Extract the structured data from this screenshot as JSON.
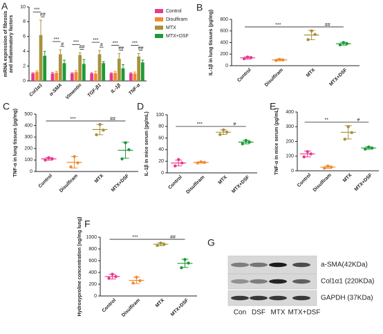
{
  "chart_data": [
    {
      "panel": "A",
      "type": "bar",
      "y_label": [
        "mRNA expression of fibrosis",
        "and inflammatory factors"
      ],
      "categories": [
        "Col1α1",
        "α-SMA",
        "Vimentin",
        "TGF-β1",
        "IL-1β",
        "TNF-α"
      ],
      "series": [
        {
          "name": "Control",
          "color": "#e8398e",
          "values": [
            1,
            1,
            1,
            1,
            1,
            1
          ],
          "errors": [
            0.1,
            0.15,
            0.1,
            0.1,
            0.1,
            0.1
          ]
        },
        {
          "name": "Disulfiram",
          "color": "#f28a2e",
          "values": [
            1.2,
            1.1,
            1.2,
            1.0,
            1.1,
            1.0
          ],
          "errors": [
            0.15,
            0.2,
            0.2,
            0.3,
            0.2,
            0.2
          ]
        },
        {
          "name": "MTX",
          "color": "#a8913c",
          "values": [
            6.2,
            3.6,
            3.5,
            3.6,
            3.0,
            3.3
          ],
          "errors": [
            2.0,
            0.6,
            0.3,
            0.5,
            0.7,
            0.4
          ]
        },
        {
          "name": "MTX+DSF",
          "color": "#1d9a36",
          "values": [
            3.4,
            2.4,
            2.3,
            2.4,
            1.7,
            2.5
          ],
          "errors": [
            0.6,
            0.4,
            0.6,
            0.2,
            0.5,
            0.3
          ]
        }
      ],
      "ylim": [
        0,
        10
      ],
      "yticks": [
        0,
        2,
        4,
        6,
        8,
        10
      ],
      "legend": "right",
      "comparisons": [
        {
          "category": 0,
          "series": [
            0,
            2
          ],
          "label": "***"
        },
        {
          "category": 0,
          "series": [
            2,
            3
          ],
          "label": "##"
        },
        {
          "category": 1,
          "series": [
            0,
            2
          ],
          "label": "***"
        },
        {
          "category": 1,
          "series": [
            2,
            3
          ],
          "label": "#"
        },
        {
          "category": 2,
          "series": [
            0,
            2
          ],
          "label": "***"
        },
        {
          "category": 2,
          "series": [
            2,
            3
          ],
          "label": "##"
        },
        {
          "category": 3,
          "series": [
            0,
            2
          ],
          "label": "***"
        },
        {
          "category": 3,
          "series": [
            2,
            3
          ],
          "label": "#"
        },
        {
          "category": 4,
          "series": [
            0,
            2
          ],
          "label": "***"
        },
        {
          "category": 4,
          "series": [
            2,
            3
          ],
          "label": "##"
        },
        {
          "category": 5,
          "series": [
            0,
            2
          ],
          "label": "***"
        },
        {
          "category": 5,
          "series": [
            2,
            3
          ],
          "label": "##"
        }
      ]
    },
    {
      "panel": "B",
      "type": "dotplot",
      "y_label": "IL-1β  in lung tissues  (pg/mg)",
      "categories": [
        "Control",
        "Disulfiram",
        "MTX",
        "MTX+DSF"
      ],
      "colors": [
        "#e8398e",
        "#f28a2e",
        "#a8913c",
        "#1d9a36"
      ],
      "points": [
        [
          120,
          150,
          140
        ],
        [
          90,
          110,
          100
        ],
        [
          450,
          600,
          540
        ],
        [
          360,
          400,
          380
        ]
      ],
      "means": [
        135,
        100,
        530,
        380
      ],
      "sds": [
        20,
        15,
        80,
        25
      ],
      "ylim": [
        0,
        800
      ],
      "yticks": [
        0,
        200,
        400,
        600,
        800
      ],
      "comparisons": [
        {
          "categories": [
            0,
            2
          ],
          "label": "***"
        },
        {
          "categories": [
            2,
            3
          ],
          "label": "##"
        }
      ]
    },
    {
      "panel": "C",
      "type": "dotplot",
      "y_label": "TNF-α  in lung tissues  (pg/mg)",
      "categories": [
        "Control",
        "Disulfiram",
        "MTX",
        "MTX+DSF"
      ],
      "colors": [
        "#e8398e",
        "#f28a2e",
        "#a8913c",
        "#1d9a36"
      ],
      "points": [
        [
          100,
          120,
          110
        ],
        [
          40,
          130,
          75
        ],
        [
          320,
          410,
          360
        ],
        [
          110,
          250,
          190
        ]
      ],
      "means": [
        110,
        80,
        365,
        185
      ],
      "sds": [
        12,
        50,
        45,
        70
      ],
      "ylim": [
        0,
        500
      ],
      "yticks": [
        0,
        100,
        200,
        300,
        400,
        500
      ],
      "comparisons": [
        {
          "categories": [
            0,
            2
          ],
          "label": "***"
        },
        {
          "categories": [
            2,
            3
          ],
          "label": "##"
        }
      ]
    },
    {
      "panel": "D",
      "type": "dotplot",
      "y_label": "IL-1β  in mice serum  (pg/mL)",
      "categories": [
        "Control",
        "Disulfiram",
        "MTX",
        "MTX+DSF"
      ],
      "colors": [
        "#e8398e",
        "#f28a2e",
        "#a8913c",
        "#1d9a36"
      ],
      "points": [
        [
          12,
          23,
          17
        ],
        [
          17,
          19,
          18
        ],
        [
          66,
          74,
          70
        ],
        [
          50,
          56,
          53
        ]
      ],
      "means": [
        17,
        18,
        70,
        53
      ],
      "sds": [
        5,
        1,
        4,
        3
      ],
      "ylim": [
        0,
        100
      ],
      "yticks": [
        0,
        20,
        40,
        60,
        80,
        100
      ],
      "comparisons": [
        {
          "categories": [
            0,
            2
          ],
          "label": "***"
        },
        {
          "categories": [
            2,
            3
          ],
          "label": "#"
        }
      ]
    },
    {
      "panel": "E",
      "type": "dotplot",
      "y_label": "TNF-α  in mice serum  (pg/mL)",
      "categories": [
        "Control",
        "Disulfiram",
        "MTX",
        "MTX+DSF"
      ],
      "colors": [
        "#e8398e",
        "#f28a2e",
        "#a8913c",
        "#1d9a36"
      ],
      "points": [
        [
          95,
          130,
          115
        ],
        [
          18,
          32,
          25
        ],
        [
          215,
          300,
          260
        ],
        [
          148,
          162,
          155
        ]
      ],
      "means": [
        115,
        25,
        262,
        155
      ],
      "sds": [
        20,
        8,
        45,
        8
      ],
      "ylim": [
        0,
        400
      ],
      "yticks": [
        0,
        100,
        200,
        300,
        400
      ],
      "comparisons": [
        {
          "categories": [
            0,
            2
          ],
          "label": "**"
        },
        {
          "categories": [
            2,
            3
          ],
          "label": "#"
        }
      ]
    },
    {
      "panel": "F",
      "type": "dotplot",
      "y_label": "Hydroxyproline concentration (ng/mg lung)",
      "categories": [
        "Control",
        "Disulfiram",
        "MTX",
        "MTX+DSF"
      ],
      "colors": [
        "#e8398e",
        "#f28a2e",
        "#a8913c",
        "#1d9a36"
      ],
      "points": [
        [
          300,
          370,
          330
        ],
        [
          220,
          320,
          260
        ],
        [
          860,
          900,
          880
        ],
        [
          480,
          620,
          560
        ]
      ],
      "means": [
        330,
        265,
        880,
        555
      ],
      "sds": [
        40,
        55,
        25,
        70
      ],
      "ylim": [
        0,
        1000
      ],
      "yticks": [
        0,
        200,
        400,
        600,
        800,
        1000
      ],
      "comparisons": [
        {
          "categories": [
            0,
            2
          ],
          "label": "***"
        },
        {
          "categories": [
            2,
            3
          ],
          "label": "##"
        }
      ]
    }
  ],
  "blot": {
    "panel": "G",
    "bands": [
      "a-SMA(42KDa)",
      "Col1α1 (220KDa)",
      "GAPDH (37KDa)"
    ],
    "lanes": [
      "Con",
      "DSF",
      "MTX",
      "MTX+DSF"
    ]
  }
}
